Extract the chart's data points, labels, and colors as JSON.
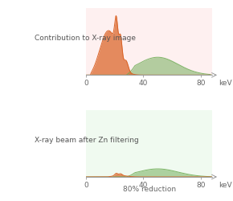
{
  "xlim": [
    0,
    88
  ],
  "xticks": [
    0,
    40,
    80
  ],
  "xlabel": "keV",
  "top_label": "Contribution to X-ray image",
  "bottom_label": "X-ray beam after Zn filtering",
  "bottom_annotation": "80% reduction",
  "bg_color_top": "#fef0f0",
  "bg_color_bottom": "#f0faf0",
  "orange_color": "#d95f20",
  "green_color": "#6aaa50",
  "orange_alpha": 0.7,
  "green_alpha": 0.5,
  "figsize": [
    2.9,
    2.5
  ],
  "dpi": 100,
  "label_fontsize": 6.5,
  "tick_fontsize": 6.5
}
